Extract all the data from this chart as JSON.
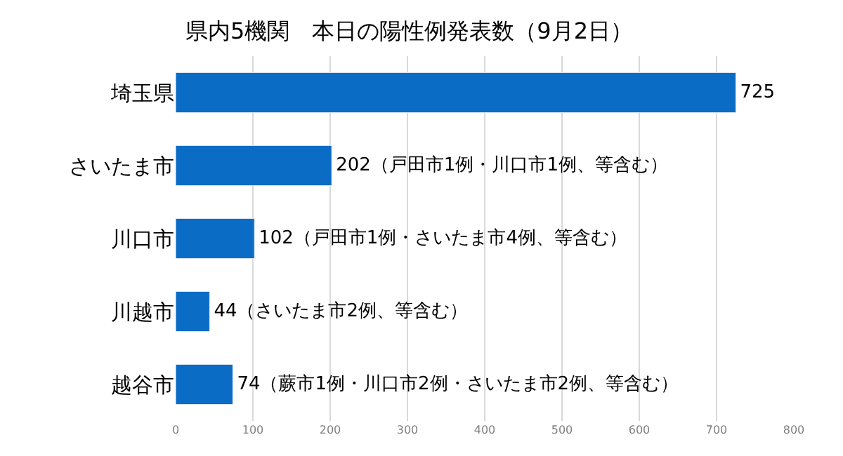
{
  "chart_data": {
    "type": "bar",
    "orientation": "horizontal",
    "title": "県内5機関　本日の陽性例発表数（9月2日）",
    "categories": [
      "埼玉県",
      "さいたま市",
      "川口市",
      "川越市",
      "越谷市"
    ],
    "values": [
      725,
      202,
      102,
      44,
      74
    ],
    "value_labels": [
      "725",
      "202（戸田市1例・川口市1例、等含む）",
      "102（戸田市1例・さいたま市4例、等含む）",
      "44（さいたま市2例、等含む）",
      "74（蕨市1例・川口市2例・さいたま市2例、等含む）"
    ],
    "color": "#0a6cc4",
    "xlim": [
      0,
      800
    ],
    "xticks": [
      0,
      100,
      200,
      300,
      400,
      500,
      600,
      700,
      800
    ],
    "grid": "x",
    "legend": false
  }
}
